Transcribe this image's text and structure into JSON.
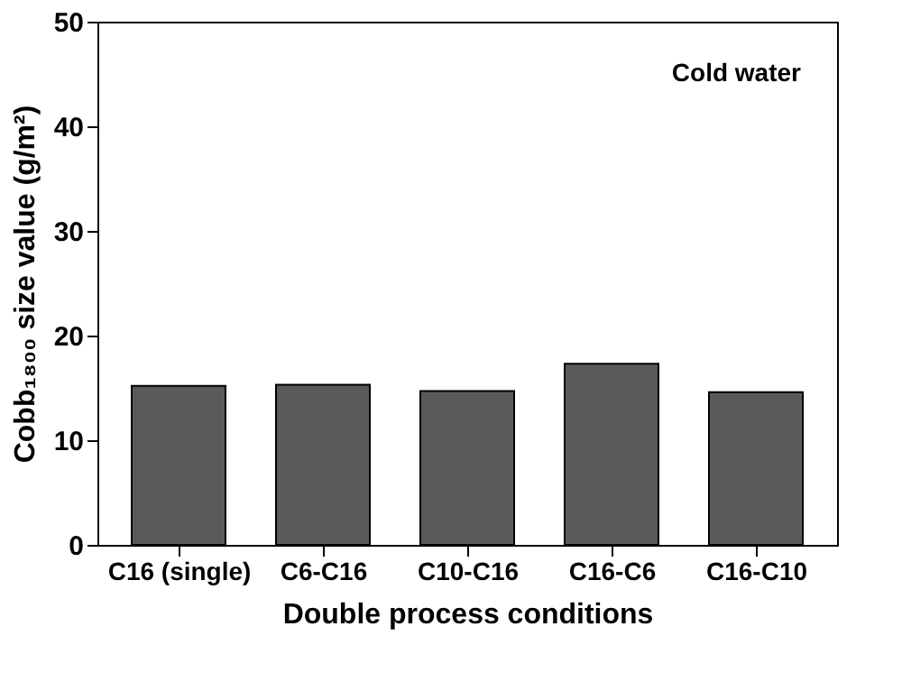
{
  "chart_data": {
    "type": "bar",
    "categories": [
      "C16 (single)",
      "C6-C16",
      "C10-C16",
      "C16-C6",
      "C16-C10"
    ],
    "values": [
      15.2,
      15.3,
      14.7,
      17.3,
      14.6
    ],
    "color": "#5a5a5a",
    "xlabel": "Double process conditions",
    "ylabel": "Cobb₁₈₀₀ size value (g/m²)",
    "ylim": [
      0,
      50
    ],
    "yticks": [
      0,
      10,
      20,
      30,
      40,
      50
    ],
    "annotations": [
      "Cold water"
    ],
    "grid": false
  }
}
